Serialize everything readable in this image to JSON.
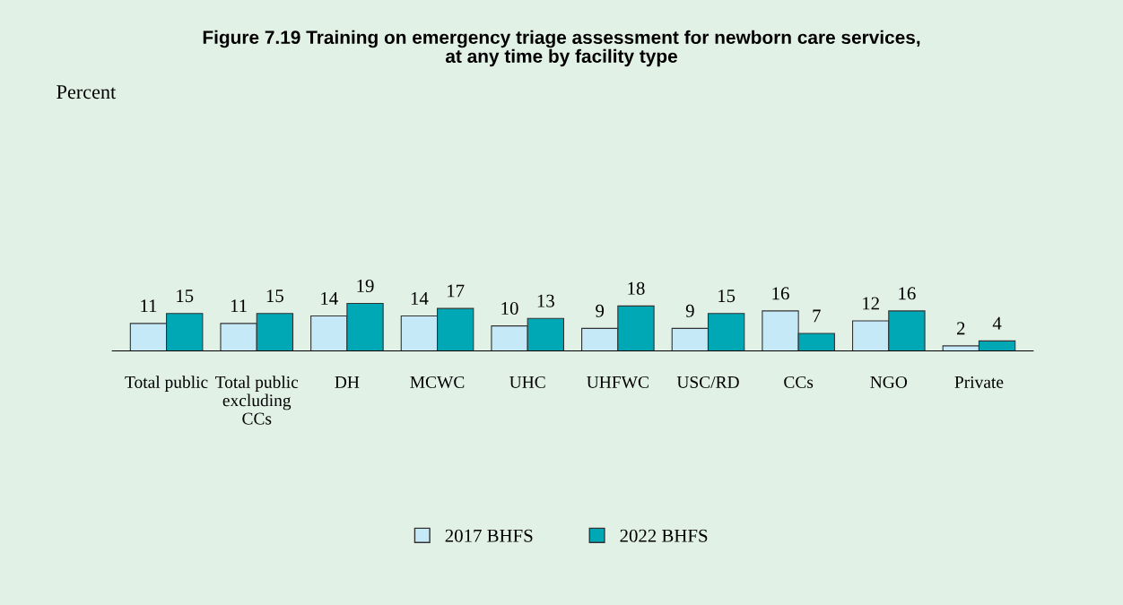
{
  "chart_data": {
    "type": "bar",
    "title": "Figure 7.19 Training on emergency triage assessment for newborn care services, at any time by facility type",
    "annotations": [
      "Percent"
    ],
    "categories": [
      "Total public",
      "Total public excluding CCs",
      "DH",
      "MCWC",
      "UHC",
      "UHFWC",
      "USC/RD",
      "CCs",
      "NGO",
      "Private"
    ],
    "series": [
      {
        "name": "2017 BHFS",
        "color": "#c6e9f8",
        "values": [
          11,
          11,
          14,
          14,
          10,
          9,
          9,
          16,
          12,
          2
        ]
      },
      {
        "name": "2022 BHFS",
        "color": "#00a7b5",
        "values": [
          15,
          15,
          19,
          17,
          13,
          18,
          15,
          7,
          16,
          4
        ]
      }
    ],
    "data_labels": true,
    "legend": "bottom",
    "grid": false
  }
}
